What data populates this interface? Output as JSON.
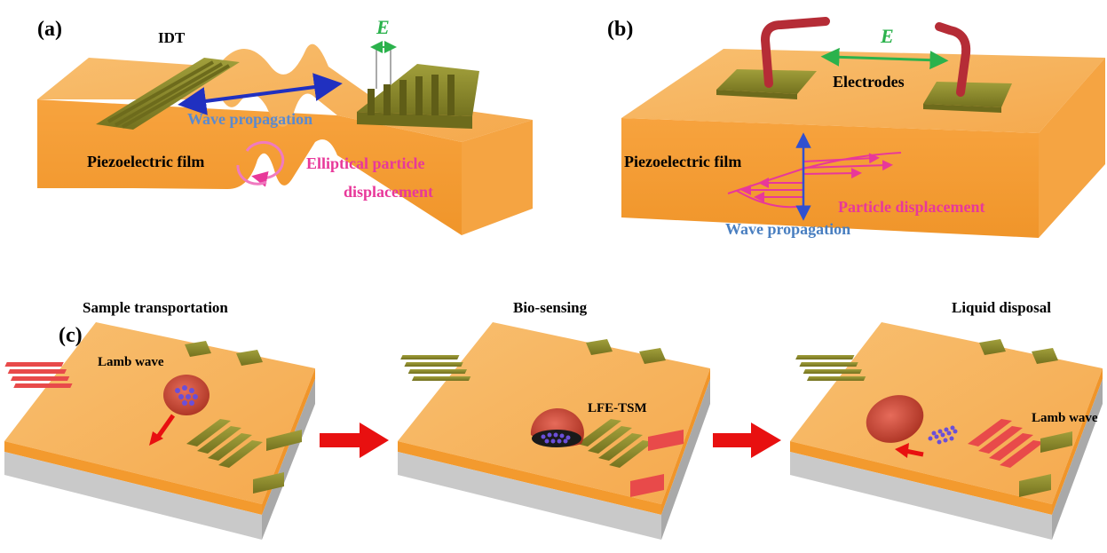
{
  "panel_a": {
    "tag": "(a)",
    "idt_label": "IDT",
    "e_label": "E",
    "wave_label": "Wave propagation",
    "film_label": "Piezoelectric film",
    "elliptical_line1": "Elliptical particle",
    "elliptical_line2": "displacement"
  },
  "panel_b": {
    "tag": "(b)",
    "e_label": "E",
    "electrodes_label": "Electrodes",
    "film_label": "Piezoelectric film",
    "particle_label": "Particle displacement",
    "wave_label": "Wave propagation"
  },
  "panel_c": {
    "tag": "(c)",
    "steps": [
      {
        "title": "Sample transportation",
        "device_label": "Lamb wave"
      },
      {
        "title": "Bio-sensing",
        "device_label": "LFE-TSM"
      },
      {
        "title": "Liquid disposal",
        "device_label": "Lamb wave"
      }
    ]
  },
  "colors": {
    "substrate_top": "#f7b561",
    "substrate_front": "#f39a2e",
    "substrate_side": "#f7a845",
    "base_gray": "#c8c8c8",
    "electrode_olive": "#8c8a2d",
    "electrode_active": "#e84a4a",
    "field_green": "#2bb24c",
    "wave_blue": "#4a7fc0",
    "displacement_pink": "#e8389a",
    "arrow_red": "#e81010",
    "droplet_red": "#c0392b",
    "particle_purple": "#6a4fd8"
  }
}
